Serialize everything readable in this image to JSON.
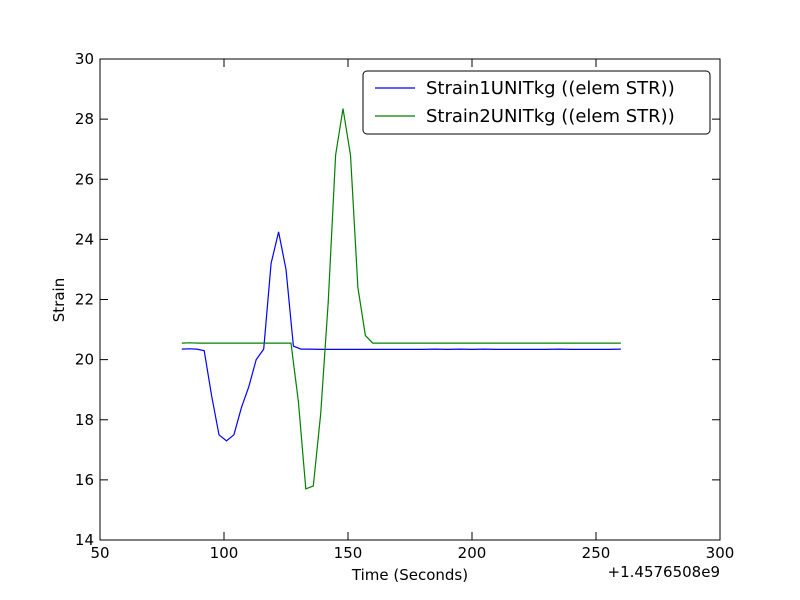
{
  "chart_data": {
    "type": "line",
    "title": "",
    "xlabel": "Time (Seconds)",
    "ylabel": "Strain",
    "x_offset_label": "+1.4576508e9",
    "xlim": [
      50,
      300
    ],
    "ylim": [
      14,
      30
    ],
    "xticks": [
      50,
      100,
      150,
      200,
      250,
      300
    ],
    "yticks": [
      14,
      16,
      18,
      20,
      22,
      24,
      26,
      28,
      30
    ],
    "grid": false,
    "legend_position": "top-right",
    "series": [
      {
        "name": "Strain1UNITkg ((elem STR))",
        "color": "#0000ff",
        "x": [
          83,
          86,
          89,
          92,
          95,
          98,
          101,
          104,
          107,
          110,
          113,
          116,
          119,
          122,
          125,
          128,
          131,
          134,
          140,
          150,
          160,
          170,
          180,
          185,
          190,
          195,
          200,
          205,
          210,
          220,
          230,
          235,
          240,
          250,
          255,
          260
        ],
        "y": [
          20.35,
          20.36,
          20.35,
          20.3,
          18.8,
          17.5,
          17.3,
          17.5,
          18.4,
          19.1,
          20.0,
          20.35,
          23.2,
          24.25,
          23.0,
          20.45,
          20.35,
          20.35,
          20.34,
          20.34,
          20.34,
          20.34,
          20.34,
          20.35,
          20.34,
          20.35,
          20.34,
          20.35,
          20.34,
          20.34,
          20.34,
          20.35,
          20.34,
          20.34,
          20.34,
          20.35
        ]
      },
      {
        "name": "Strain2UNITkg ((elem STR))",
        "color": "#008000",
        "x": [
          83,
          86,
          90,
          100,
          110,
          120,
          127,
          130,
          133,
          136,
          139,
          142,
          145,
          148,
          151,
          154,
          157,
          160,
          170,
          200,
          230,
          260
        ],
        "y": [
          20.55,
          20.56,
          20.55,
          20.55,
          20.55,
          20.55,
          20.55,
          18.6,
          15.7,
          15.8,
          18.2,
          21.9,
          26.8,
          28.35,
          26.8,
          22.4,
          20.8,
          20.55,
          20.55,
          20.55,
          20.55,
          20.55
        ]
      }
    ]
  }
}
